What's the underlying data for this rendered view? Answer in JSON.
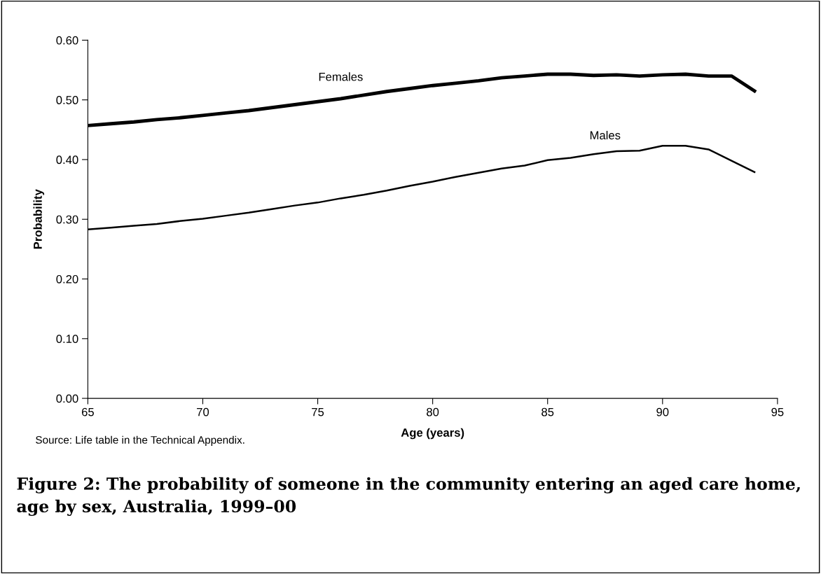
{
  "chart_data": {
    "type": "line",
    "title": "Figure 2: The probability of someone in the community entering an aged care home, age by sex, Australia, 1999–00",
    "xlabel": "Age (years)",
    "ylabel": "Probability",
    "x": [
      65,
      66,
      67,
      68,
      69,
      70,
      71,
      72,
      73,
      74,
      75,
      76,
      77,
      78,
      79,
      80,
      81,
      82,
      83,
      84,
      85,
      86,
      87,
      88,
      89,
      90,
      91,
      92,
      93,
      94
    ],
    "series": [
      {
        "name": "Females",
        "color": "#000000",
        "values": [
          0.457,
          0.46,
          0.463,
          0.467,
          0.47,
          0.474,
          0.478,
          0.482,
          0.487,
          0.492,
          0.497,
          0.502,
          0.508,
          0.514,
          0.519,
          0.524,
          0.528,
          0.532,
          0.537,
          0.54,
          0.543,
          0.543,
          0.541,
          0.542,
          0.54,
          0.542,
          0.543,
          0.54,
          0.54,
          0.515
        ]
      },
      {
        "name": "Males",
        "color": "#000000",
        "values": [
          0.283,
          0.286,
          0.289,
          0.292,
          0.297,
          0.301,
          0.306,
          0.311,
          0.317,
          0.323,
          0.328,
          0.335,
          0.341,
          0.348,
          0.356,
          0.363,
          0.371,
          0.378,
          0.385,
          0.39,
          0.399,
          0.403,
          0.409,
          0.414,
          0.415,
          0.423,
          0.423,
          0.417,
          0.398,
          0.379
        ]
      }
    ],
    "xlim": [
      65,
      95
    ],
    "xticks": [
      65,
      70,
      75,
      80,
      85,
      90,
      95
    ],
    "ylim": [
      0,
      0.6
    ],
    "yticks": [
      {
        "value": 0,
        "label": "0.00"
      },
      {
        "value": 0.1,
        "label": "0.10"
      },
      {
        "value": 0.2,
        "label": "0.20"
      },
      {
        "value": 0.3,
        "label": "0.30"
      },
      {
        "value": 0.4,
        "label": "0.40"
      },
      {
        "value": 0.5,
        "label": "0.50"
      },
      {
        "value": 0.6,
        "label": "0.60"
      }
    ],
    "grid": false,
    "legend": false,
    "marker": "none",
    "line_style": "solid",
    "annotations": [
      "Source: Life table in the Technical Appendix."
    ]
  }
}
